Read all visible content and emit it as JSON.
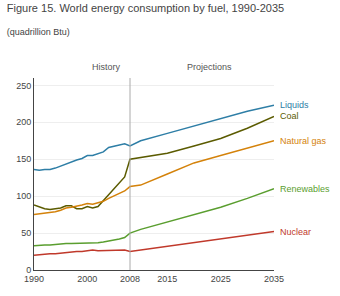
{
  "chart_data": {
    "type": "line",
    "title": "Figure 15. World energy consumption by fuel, 1990-2035",
    "subtitle": "(quadrillion Btu)",
    "annotations": [
      "History",
      "Projections"
    ],
    "vline": 2008,
    "x": [
      1990,
      1991,
      1992,
      1993,
      1994,
      1995,
      1996,
      1997,
      1998,
      1999,
      2000,
      2001,
      2002,
      2003,
      2004,
      2005,
      2006,
      2007,
      2008,
      2010,
      2015,
      2020,
      2025,
      2030,
      2035
    ],
    "series": [
      {
        "name": "Liquids",
        "color": "#2e7ea6",
        "values": [
          136,
          135,
          136,
          136,
          138,
          141,
          144,
          147,
          149,
          151,
          155,
          155,
          157,
          160,
          166,
          168,
          169,
          171,
          168,
          175,
          185,
          195,
          205,
          215,
          223
        ]
      },
      {
        "name": "Coal",
        "color": "#5b5b00",
        "values": [
          88,
          85,
          83,
          82,
          83,
          84,
          87,
          87,
          83,
          83,
          86,
          84,
          86,
          94,
          103,
          110,
          119,
          126,
          150,
          152,
          158,
          168,
          178,
          192,
          208
        ]
      },
      {
        "name": "Natural gas",
        "color": "#d4820a",
        "values": [
          75,
          76,
          77,
          77,
          79,
          81,
          84,
          85,
          86,
          88,
          90,
          89,
          91,
          93,
          97,
          100,
          103,
          107,
          113,
          115,
          130,
          145,
          155,
          165,
          175
        ]
      },
      {
        "name": "Renewables",
        "color": "#5a9e2f",
        "values": [
          33,
          34,
          34,
          34,
          35,
          35,
          36,
          36,
          36,
          37,
          37,
          37,
          37,
          38,
          39,
          40,
          42,
          44,
          50,
          55,
          65,
          75,
          85,
          97,
          110
        ]
      },
      {
        "name": "Nuclear",
        "color": "#c0392b",
        "values": [
          20,
          21,
          22,
          22,
          22,
          23,
          24,
          24,
          25,
          25,
          26,
          27,
          26,
          26,
          27,
          27,
          27,
          27,
          25,
          27,
          32,
          38,
          43,
          47,
          52
        ]
      }
    ],
    "xlim": [
      1990,
      2035
    ],
    "xticks": [
      1990,
      2000,
      2008,
      2015,
      2025,
      2035
    ],
    "ylim": [
      0,
      260
    ],
    "yticks": [
      0,
      50,
      100,
      150,
      200,
      250
    ],
    "grid": true
  }
}
